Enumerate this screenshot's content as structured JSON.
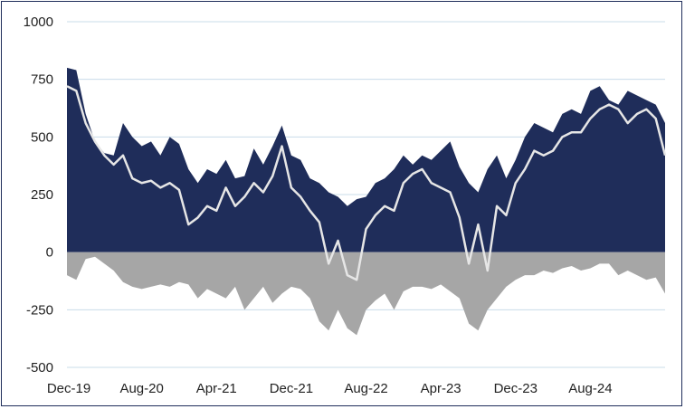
{
  "chart_data": {
    "type": "area",
    "title": "",
    "xlabel": "",
    "ylabel": "",
    "ylim": [
      -500,
      1000
    ],
    "yticks": [
      -500,
      -250,
      0,
      250,
      500,
      750,
      1000
    ],
    "yticklabels": [
      "-500",
      "-250",
      "0",
      "250",
      "500",
      "750",
      "1000"
    ],
    "xticklabels": [
      "Dec-19",
      "Aug-20",
      "Apr-21",
      "Dec-21",
      "Aug-22",
      "Apr-23",
      "Dec-23",
      "Aug-24"
    ],
    "grid": "horizontal",
    "legend": "none",
    "x": [
      "Dec-19",
      "Jan-20",
      "Feb-20",
      "Mar-20",
      "Apr-20",
      "May-20",
      "Jun-20",
      "Jul-20",
      "Aug-20",
      "Sep-20",
      "Oct-20",
      "Nov-20",
      "Dec-20",
      "Jan-21",
      "Feb-21",
      "Mar-21",
      "Apr-21",
      "May-21",
      "Jun-21",
      "Jul-21",
      "Aug-21",
      "Sep-21",
      "Oct-21",
      "Nov-21",
      "Dec-21",
      "Jan-22",
      "Feb-22",
      "Mar-22",
      "Apr-22",
      "May-22",
      "Jun-22",
      "Jul-22",
      "Aug-22",
      "Sep-22",
      "Oct-22",
      "Nov-22",
      "Dec-22",
      "Jan-23",
      "Feb-23",
      "Mar-23",
      "Apr-23",
      "May-23",
      "Jun-23",
      "Jul-23",
      "Aug-23",
      "Sep-23",
      "Oct-23",
      "Nov-23",
      "Dec-23",
      "Jan-24",
      "Feb-24",
      "Mar-24",
      "Apr-24",
      "May-24",
      "Jun-24",
      "Jul-24",
      "Aug-24",
      "Sep-24",
      "Oct-24",
      "Nov-24",
      "Dec-24",
      "Jan-25",
      "Feb-25",
      "Mar-25",
      "Apr-25"
    ],
    "series": [
      {
        "name": "",
        "kind": "area",
        "color": "#1f2d5a",
        "values": [
          800,
          790,
          600,
          480,
          430,
          420,
          560,
          500,
          460,
          480,
          420,
          500,
          470,
          360,
          300,
          360,
          340,
          400,
          320,
          330,
          450,
          380,
          460,
          550,
          420,
          400,
          320,
          300,
          260,
          240,
          200,
          230,
          240,
          300,
          320,
          360,
          420,
          380,
          420,
          400,
          440,
          480,
          370,
          300,
          260,
          360,
          420,
          320,
          400,
          500,
          560,
          540,
          520,
          600,
          620,
          600,
          700,
          720,
          660,
          640,
          700,
          680,
          660,
          640,
          560
        ],
        "values_note": ""
      },
      {
        "name": "",
        "kind": "line",
        "color": "#e6e6e6",
        "values": [
          720,
          700,
          560,
          480,
          420,
          380,
          420,
          320,
          300,
          310,
          280,
          300,
          270,
          120,
          150,
          200,
          180,
          280,
          200,
          240,
          300,
          260,
          330,
          460,
          280,
          240,
          180,
          130,
          -50,
          50,
          -100,
          -120,
          100,
          160,
          200,
          180,
          300,
          340,
          360,
          300,
          280,
          260,
          150,
          -50,
          120,
          -80,
          200,
          160,
          300,
          360,
          440,
          420,
          440,
          500,
          520,
          520,
          580,
          620,
          640,
          620,
          560,
          600,
          620,
          580,
          420
        ]
      },
      {
        "name": "",
        "kind": "area",
        "color": "#a6a6a6",
        "values": [
          -100,
          -120,
          -30,
          -20,
          -50,
          -80,
          -130,
          -150,
          -160,
          -150,
          -140,
          -150,
          -130,
          -140,
          -200,
          -160,
          -180,
          -200,
          -150,
          -250,
          -200,
          -150,
          -220,
          -180,
          -150,
          -160,
          -200,
          -300,
          -340,
          -250,
          -330,
          -360,
          -250,
          -210,
          -180,
          -250,
          -170,
          -150,
          -150,
          -160,
          -140,
          -170,
          -200,
          -310,
          -340,
          -250,
          -200,
          -150,
          -120,
          -100,
          -100,
          -80,
          -90,
          -70,
          -60,
          -80,
          -70,
          -50,
          -50,
          -100,
          -80,
          -100,
          -120,
          -110,
          -180
        ]
      }
    ]
  }
}
